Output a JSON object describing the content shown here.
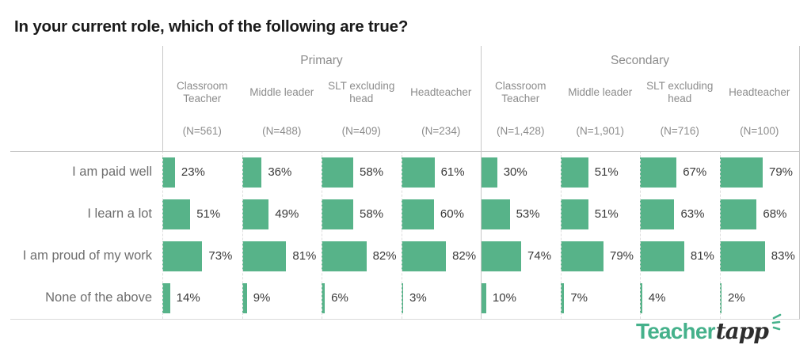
{
  "title": "In your current role, which of the following are true?",
  "logo": {
    "teacher": "Teacher",
    "tapp": "tapp",
    "sparkle_color": "#45b18b"
  },
  "chart_data": {
    "type": "bar",
    "orientation": "horizontal",
    "unit": "%",
    "bar_color": "#57b389",
    "xlim": [
      0,
      100
    ],
    "grid": "dashed column separators within groups, solid lines between groups",
    "legend": "none",
    "groups": [
      {
        "label": "Primary",
        "columns": [
          {
            "label": "Classroom Teacher",
            "n": "(N=561)"
          },
          {
            "label": "Middle leader",
            "n": "(N=488)"
          },
          {
            "label": "SLT excluding head",
            "n": "(N=409)"
          },
          {
            "label": "Headteacher",
            "n": "(N=234)"
          }
        ]
      },
      {
        "label": "Secondary",
        "columns": [
          {
            "label": "Classroom Teacher",
            "n": "(N=1,428)"
          },
          {
            "label": "Middle leader",
            "n": "(N=1,901)"
          },
          {
            "label": "SLT excluding head",
            "n": "(N=716)"
          },
          {
            "label": "Headteacher",
            "n": "(N=100)"
          }
        ]
      }
    ],
    "rows": [
      {
        "label": "I am paid well",
        "values": [
          23,
          36,
          58,
          61,
          30,
          51,
          67,
          79
        ]
      },
      {
        "label": "I learn a lot",
        "values": [
          51,
          49,
          58,
          60,
          53,
          51,
          63,
          68
        ]
      },
      {
        "label": "I am proud of my work",
        "values": [
          73,
          81,
          82,
          82,
          74,
          79,
          81,
          83
        ]
      },
      {
        "label": "None of the above",
        "values": [
          14,
          9,
          6,
          3,
          10,
          7,
          4,
          2
        ]
      }
    ]
  }
}
